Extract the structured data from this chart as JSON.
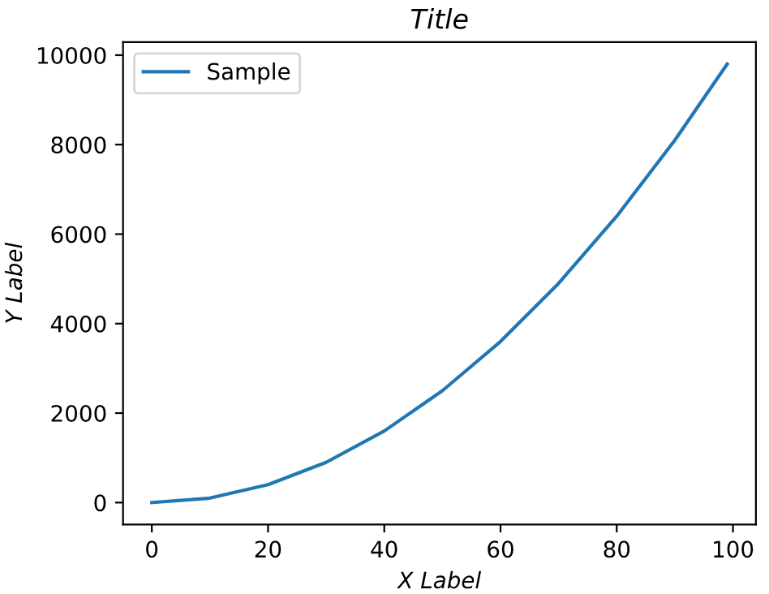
{
  "chart_data": {
    "type": "line",
    "title": "Title",
    "xlabel": "X Label",
    "ylabel": "Y Label",
    "series": [
      {
        "name": "Sample",
        "color": "#1f77b4",
        "x": [
          0,
          10,
          20,
          30,
          40,
          50,
          60,
          70,
          80,
          90,
          99
        ],
        "values": [
          0,
          100,
          400,
          900,
          1600,
          2500,
          3600,
          4900,
          6400,
          8100,
          9800
        ]
      }
    ],
    "xlim": [
      -4.95,
      103.95
    ],
    "ylim": [
      -490,
      10290
    ],
    "xticks": [
      0,
      20,
      40,
      60,
      80,
      100
    ],
    "yticks": [
      0,
      2000,
      4000,
      6000,
      8000,
      10000
    ],
    "legend": "top left",
    "grid": false,
    "marker": "none",
    "line_style": "solid"
  }
}
